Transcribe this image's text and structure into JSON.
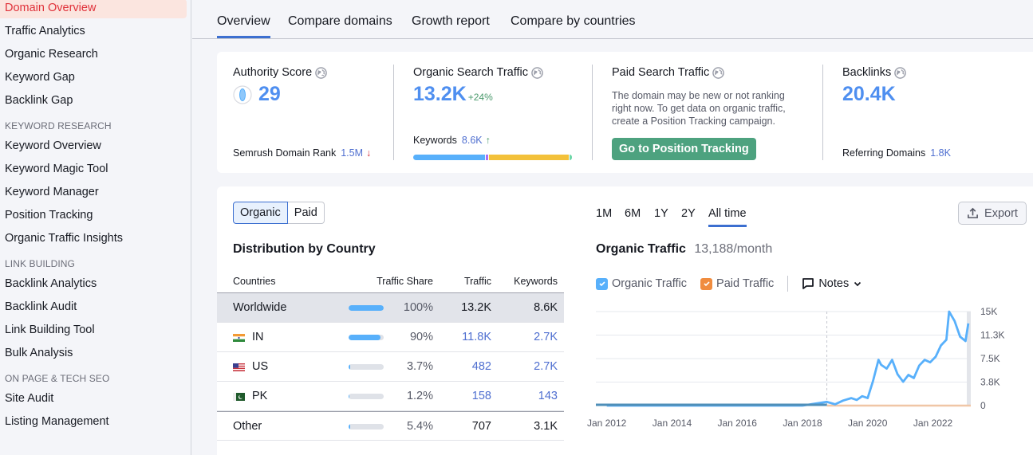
{
  "sidebar": {
    "items": [
      {
        "label": "Domain Overview",
        "active": true
      },
      {
        "label": "Traffic Analytics"
      },
      {
        "label": "Organic Research"
      },
      {
        "label": "Keyword Gap"
      },
      {
        "label": "Backlink Gap"
      }
    ],
    "sections": [
      {
        "heading": "KEYWORD RESEARCH",
        "items": [
          "Keyword Overview",
          "Keyword Magic Tool",
          "Keyword Manager",
          "Position Tracking",
          "Organic Traffic Insights"
        ]
      },
      {
        "heading": "LINK BUILDING",
        "items": [
          "Backlink Analytics",
          "Backlink Audit",
          "Link Building Tool",
          "Bulk Analysis"
        ]
      },
      {
        "heading": "ON PAGE & TECH SEO",
        "items": [
          "Site Audit",
          "Listing Management"
        ]
      }
    ]
  },
  "tabs": [
    {
      "label": "Overview",
      "active": true
    },
    {
      "label": "Compare domains"
    },
    {
      "label": "Growth report"
    },
    {
      "label": "Compare by countries"
    }
  ],
  "summary": {
    "authority": {
      "title": "Authority Score",
      "value": "29",
      "foot_label": "Semrush Domain Rank",
      "foot_value": "1.5M",
      "foot_trend": "↓"
    },
    "organic": {
      "title": "Organic Search Traffic",
      "value": "13.2K",
      "delta": "+24%",
      "foot_label": "Keywords",
      "foot_value": "8.6K",
      "foot_trend": "↑",
      "bar_segments": [
        {
          "color": "#58b0fb",
          "pct": 45
        },
        {
          "color": "#a86ef5",
          "pct": 1.5
        },
        {
          "color": "#f3c13a",
          "pct": 50
        },
        {
          "color": "#6ed7a8",
          "pct": 1.5
        }
      ]
    },
    "paid": {
      "title": "Paid Search Traffic",
      "description": "The domain may be new or not ranking right now. To get data on organic traffic, create a Position Tracking campaign.",
      "button": "Go to Position Tracking"
    },
    "backlinks": {
      "title": "Backlinks",
      "value": "20.4K",
      "foot_label": "Referring Domains",
      "foot_value": "1.8K"
    }
  },
  "distribution": {
    "toggle": {
      "organic": "Organic",
      "paid": "Paid"
    },
    "title": "Distribution by Country",
    "columns": {
      "countries": "Countries",
      "share": "Traffic Share",
      "traffic": "Traffic",
      "keywords": "Keywords"
    },
    "rows": [
      {
        "name": "Worldwide",
        "flag": "",
        "bar": 100,
        "share": "100%",
        "traffic": "13.2K",
        "keywords": "8.6K",
        "link": false
      },
      {
        "name": "IN",
        "flag": "in",
        "bar": 90,
        "share": "90%",
        "traffic": "11.8K",
        "keywords": "2.7K",
        "link": true
      },
      {
        "name": "US",
        "flag": "us",
        "bar": 4,
        "share": "3.7%",
        "traffic": "482",
        "keywords": "2.7K",
        "link": true
      },
      {
        "name": "PK",
        "flag": "pk",
        "bar": 2,
        "share": "1.2%",
        "traffic": "158",
        "keywords": "143",
        "link": true
      },
      {
        "name": "Other",
        "flag": "",
        "bar": 5,
        "share": "5.4%",
        "traffic": "707",
        "keywords": "3.1K",
        "link": false
      }
    ]
  },
  "traffic_chart": {
    "ranges": [
      "1M",
      "6M",
      "1Y",
      "2Y",
      "All time"
    ],
    "active_range": "All time",
    "export_label": "Export",
    "title": "Organic Traffic",
    "subtitle": "13,188/month",
    "legend": {
      "organic": "Organic Traffic",
      "paid": "Paid Traffic",
      "notes": "Notes"
    },
    "colors": {
      "organic": "#58b0fb",
      "paid": "#f0a56e"
    }
  },
  "chart_data": {
    "type": "line",
    "title": "Organic Traffic",
    "subtitle": "13,188/month",
    "xlabel": "",
    "ylabel": "",
    "x_ticks": [
      "Jan 2012",
      "Jan 2014",
      "Jan 2016",
      "Jan 2018",
      "Jan 2020",
      "Jan 2022"
    ],
    "y_ticks": [
      "0",
      "3.8K",
      "7.5K",
      "11.3K",
      "15K"
    ],
    "ylim": [
      0,
      15000
    ],
    "grid": true,
    "legend_position": "top",
    "series": [
      {
        "name": "Organic Traffic",
        "color": "#58b0fb",
        "x": [
          "2012-01",
          "2014-01",
          "2016-01",
          "2018-01",
          "2018-10",
          "2019-01",
          "2019-04",
          "2019-07",
          "2019-09",
          "2019-11",
          "2020-01",
          "2020-03",
          "2020-05",
          "2020-06",
          "2020-08",
          "2020-10",
          "2020-12",
          "2021-02",
          "2021-04",
          "2021-06",
          "2021-08",
          "2021-10",
          "2021-12",
          "2022-02",
          "2022-04",
          "2022-06",
          "2022-07",
          "2022-09",
          "2022-11",
          "2023-01",
          "2023-02"
        ],
        "values": [
          0,
          0,
          0,
          0,
          600,
          200,
          800,
          1200,
          900,
          1500,
          1200,
          3900,
          7300,
          6500,
          5900,
          7300,
          5000,
          3800,
          4900,
          4400,
          6400,
          7300,
          6900,
          7800,
          9600,
          10500,
          15000,
          13500,
          11000,
          10300,
          13100
        ]
      },
      {
        "name": "Paid Traffic",
        "color": "#f0a56e",
        "x": [
          "2012-01",
          "2023-02"
        ],
        "values": [
          0,
          0
        ]
      }
    ]
  }
}
